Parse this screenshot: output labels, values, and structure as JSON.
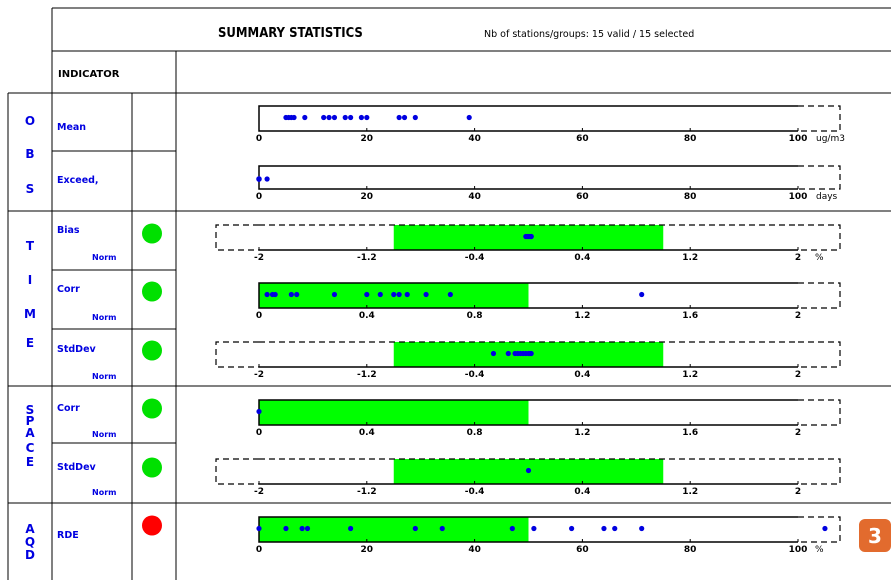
{
  "header": {
    "title": "SUMMARY STATISTICS",
    "subtitle": "Nb of stations/groups: 15 valid / 15 selected",
    "indicator_label": "INDICATOR"
  },
  "groups": [
    {
      "key": "obs",
      "letters": [
        "O",
        "B",
        "S"
      ]
    },
    {
      "key": "time",
      "letters": [
        "T",
        "I",
        "M",
        "E"
      ]
    },
    {
      "key": "space",
      "letters": [
        "S",
        "P",
        "A",
        "C",
        "E"
      ]
    },
    {
      "key": "aqd",
      "letters": [
        "A",
        "Q",
        "D"
      ]
    }
  ],
  "badge": "3",
  "colors": {
    "accent": "#00ff00",
    "point": "#0000e0",
    "status_ok": "#00e000",
    "status_bad": "#ff0000",
    "badge": "#e26b2e"
  },
  "chart_data": [
    {
      "id": "mean",
      "group": "OBS",
      "type": "scatter",
      "label": "Mean",
      "norm_label": "",
      "status": "",
      "xlim": [
        0,
        100
      ],
      "ticks": [
        "0",
        "20",
        "40",
        "60",
        "80",
        "100"
      ],
      "unit": "ug/m3",
      "green_range": null,
      "values": [
        5,
        5.5,
        6,
        6.5,
        8.5,
        12,
        13,
        14,
        16,
        17,
        19,
        20,
        26,
        27,
        29,
        39
      ]
    },
    {
      "id": "exceed",
      "group": "OBS",
      "type": "scatter",
      "label": "Exceed,",
      "norm_label": "",
      "status": "",
      "xlim": [
        0,
        100
      ],
      "ticks": [
        "0",
        "20",
        "40",
        "60",
        "80",
        "100"
      ],
      "unit": "days",
      "green_range": null,
      "values": [
        0,
        0,
        0,
        0,
        0,
        0,
        0,
        0,
        0,
        0,
        0,
        0,
        0,
        1.5
      ]
    },
    {
      "id": "time-bias",
      "group": "TIME",
      "type": "scatter",
      "label": "Bias",
      "norm_label": "Norm",
      "status": "green",
      "xlim": [
        -2,
        2
      ],
      "ticks": [
        "-2",
        "-1.2",
        "-0.4",
        "0.4",
        "1.2",
        "2"
      ],
      "unit": "%",
      "green_range": [
        -1,
        1
      ],
      "values": [
        -0.02,
        -0.01,
        0,
        0.01,
        0.02,
        0.02
      ]
    },
    {
      "id": "time-corr",
      "group": "TIME",
      "type": "scatter",
      "label": "Corr",
      "norm_label": "Norm",
      "status": "green",
      "xlim": [
        0,
        2
      ],
      "ticks": [
        "0",
        "0.4",
        "0.8",
        "1.2",
        "1.6",
        "2"
      ],
      "unit": "",
      "green_range": [
        0,
        1
      ],
      "values": [
        0.03,
        0.05,
        0.06,
        0.12,
        0.14,
        0.28,
        0.4,
        0.45,
        0.5,
        0.52,
        0.55,
        0.62,
        0.71,
        1.42
      ]
    },
    {
      "id": "time-stddev",
      "group": "TIME",
      "type": "scatter",
      "label": "StdDev",
      "norm_label": "Norm",
      "status": "green",
      "xlim": [
        -2,
        2
      ],
      "ticks": [
        "-2",
        "-1.2",
        "-0.4",
        "0.4",
        "1.2",
        "2"
      ],
      "unit": "",
      "green_range": [
        -1,
        1
      ],
      "values": [
        -0.26,
        -0.15,
        -0.1,
        -0.08,
        -0.06,
        -0.04,
        -0.02,
        0,
        0.01,
        0.02
      ]
    },
    {
      "id": "space-corr",
      "group": "SPACE",
      "type": "scatter",
      "label": "Corr",
      "norm_label": "Norm",
      "status": "green",
      "xlim": [
        0,
        2
      ],
      "ticks": [
        "0",
        "0.4",
        "0.8",
        "1.2",
        "1.6",
        "2"
      ],
      "unit": "",
      "green_range": [
        0,
        1
      ],
      "values": [
        0
      ]
    },
    {
      "id": "space-stddev",
      "group": "SPACE",
      "type": "scatter",
      "label": "StdDev",
      "norm_label": "Norm",
      "status": "green",
      "xlim": [
        -2,
        2
      ],
      "ticks": [
        "-2",
        "-1.2",
        "-0.4",
        "0.4",
        "1.2",
        "2"
      ],
      "unit": "",
      "green_range": [
        -1,
        1
      ],
      "values": [
        0
      ]
    },
    {
      "id": "rde",
      "group": "AQD",
      "type": "scatter",
      "label": "RDE",
      "norm_label": "",
      "status": "red",
      "xlim": [
        0,
        100
      ],
      "ticks": [
        "0",
        "20",
        "40",
        "60",
        "80",
        "100"
      ],
      "unit": "%",
      "green_range": [
        0,
        50
      ],
      "values": [
        0,
        5,
        8,
        9,
        17,
        29,
        34,
        47,
        51,
        58,
        64,
        66,
        71,
        105
      ]
    }
  ]
}
